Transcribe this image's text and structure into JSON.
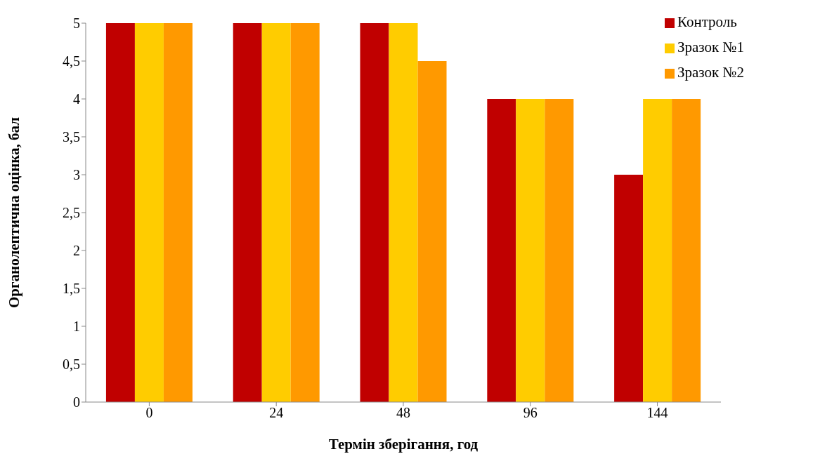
{
  "chart_data": {
    "type": "bar",
    "xlabel": "Термін зберігання, год",
    "ylabel": "Органолептична оцінка, бал",
    "categories": [
      "0",
      "24",
      "48",
      "96",
      "144"
    ],
    "series": [
      {
        "name": "Контроль",
        "color": "#c00000",
        "values": [
          5,
          5,
          5,
          4,
          3
        ]
      },
      {
        "name": "Зразок №1",
        "color": "#ffcc00",
        "values": [
          5,
          5,
          5,
          4,
          4
        ]
      },
      {
        "name": "Зразок №2",
        "color": "#ff9900",
        "values": [
          5,
          5,
          4.5,
          4,
          4
        ]
      }
    ],
    "ylim": [
      0,
      5
    ],
    "yticks": [
      0,
      {
        "value": 0.5,
        "label": "0,5"
      },
      1,
      {
        "value": 1.5,
        "label": "1,5"
      },
      2,
      {
        "value": 2.5,
        "label": "2,5"
      },
      3,
      {
        "value": 3.5,
        "label": "3,5"
      },
      4,
      {
        "value": 4.5,
        "label": "4,5"
      },
      5
    ],
    "grid": false,
    "legend": "top right"
  }
}
